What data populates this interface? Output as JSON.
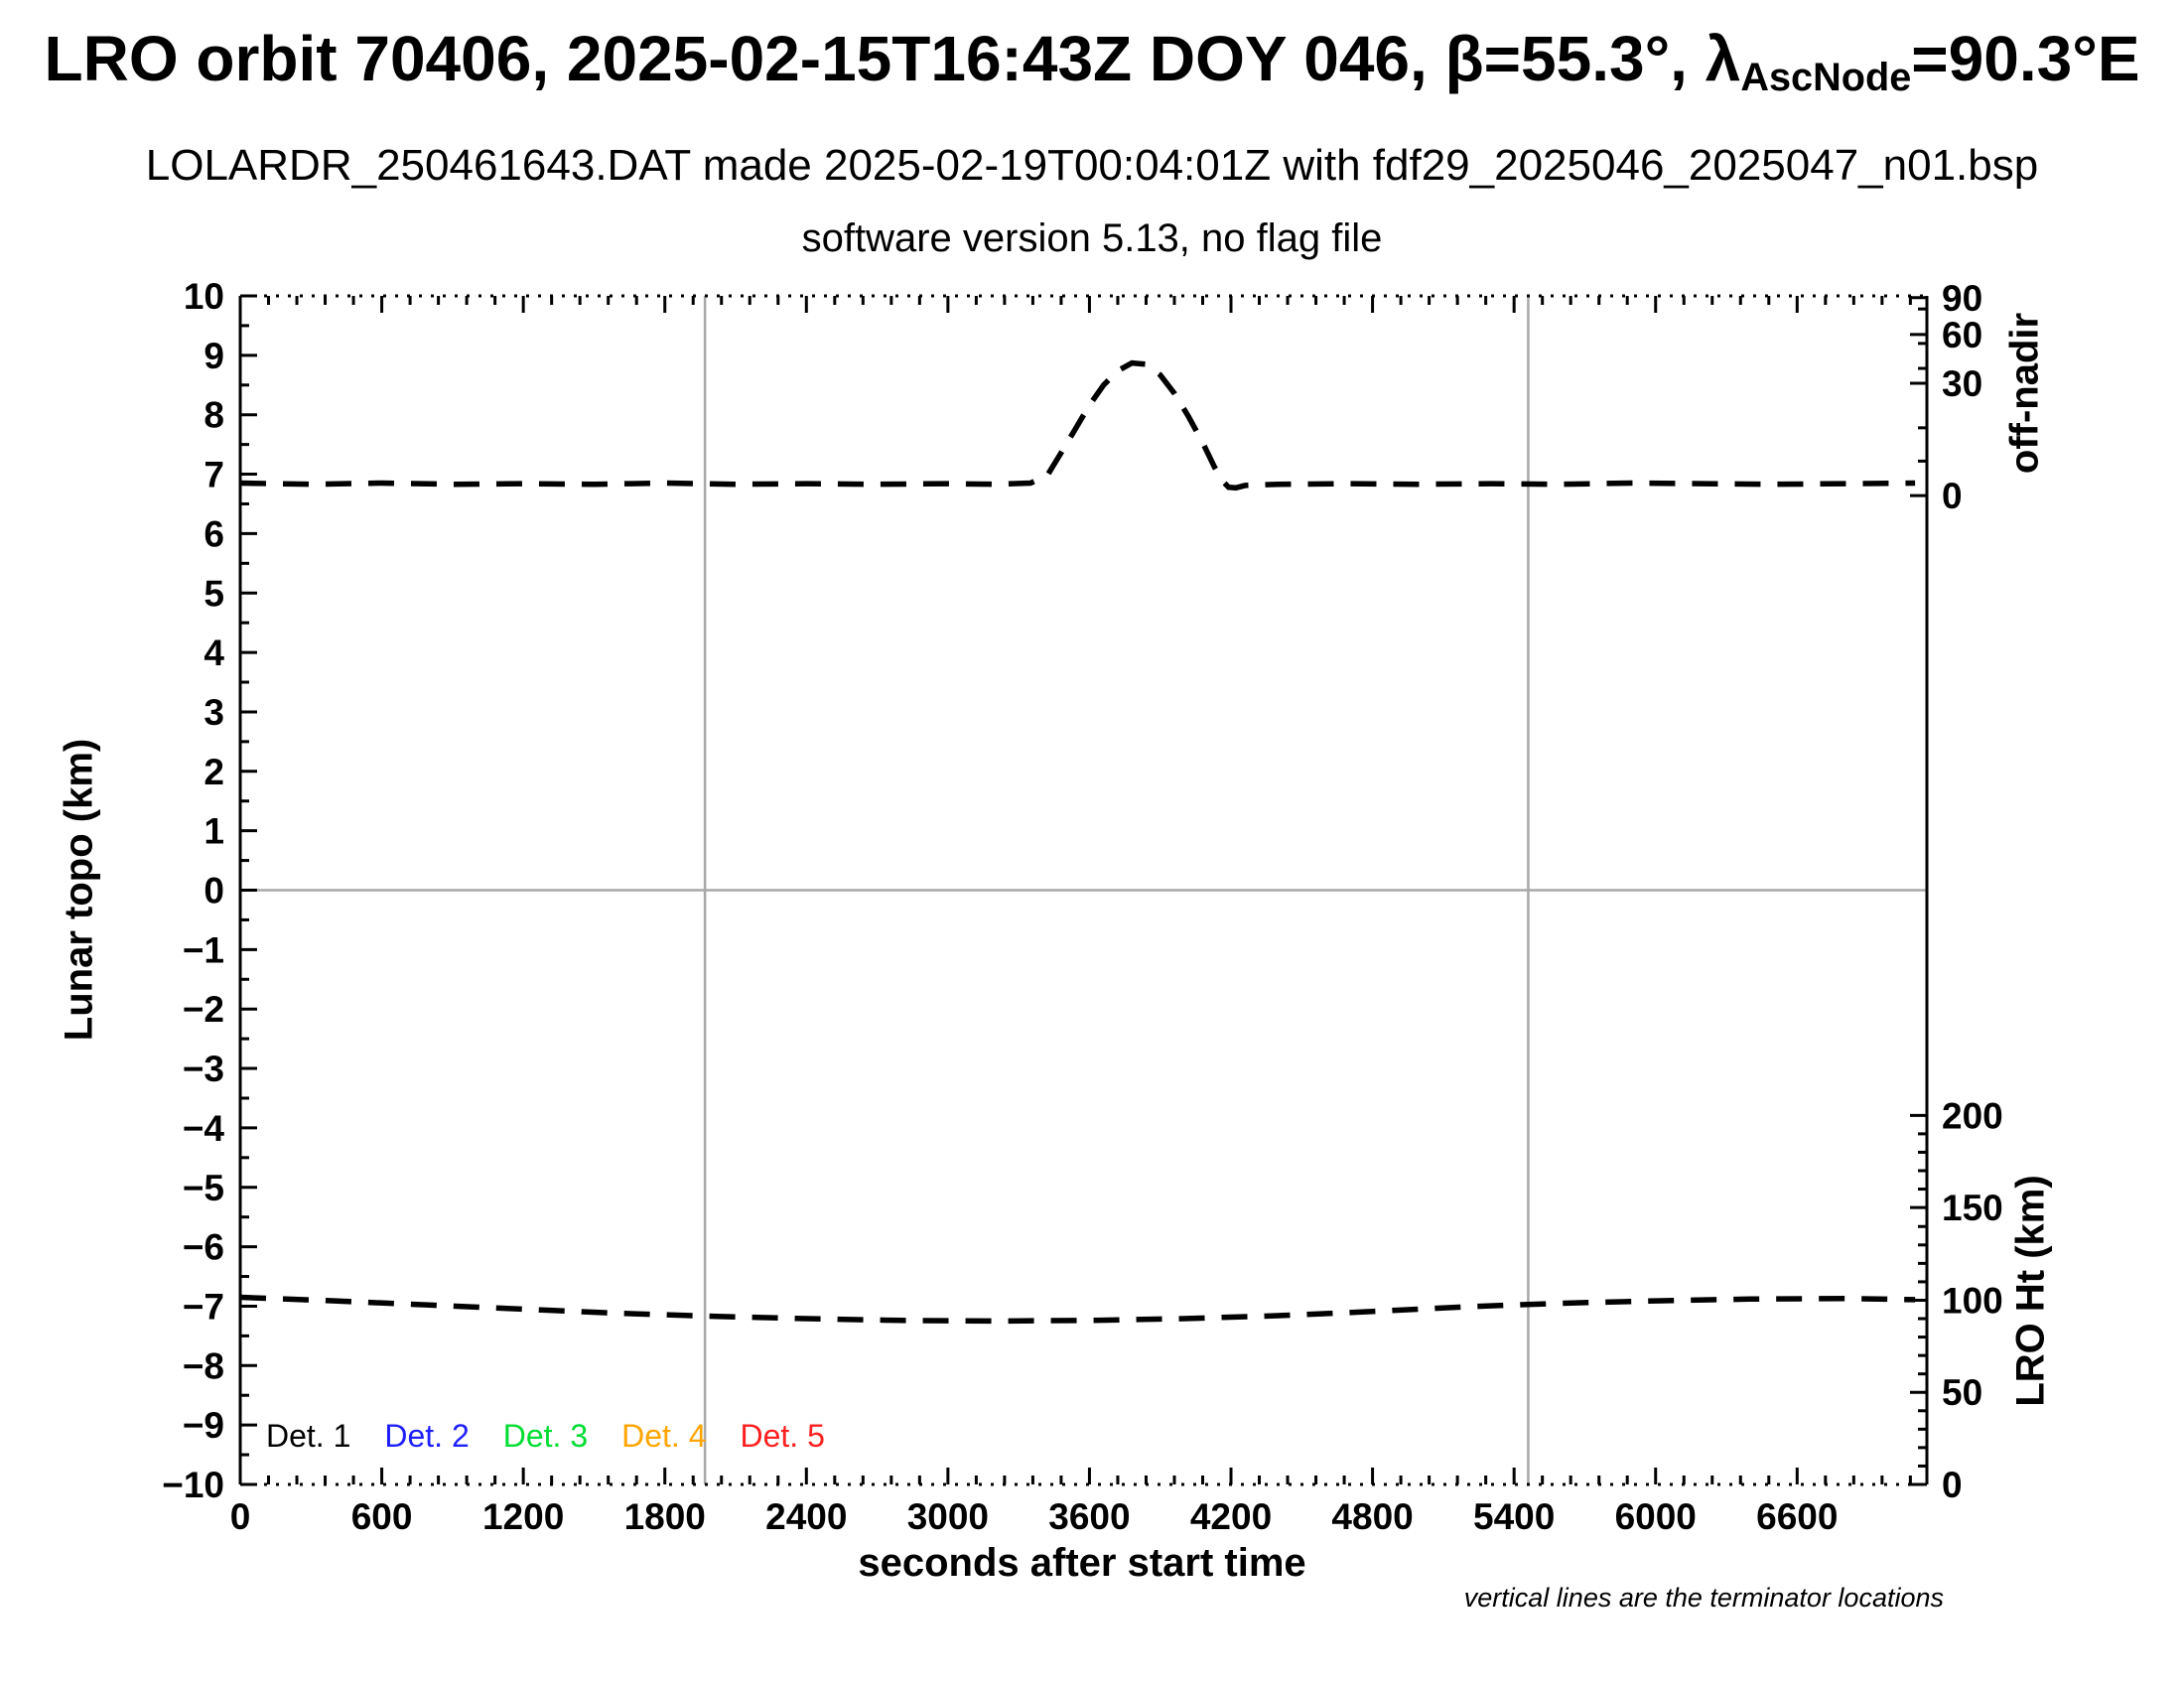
{
  "chart_data": {
    "type": "line",
    "title": {
      "part1": "LRO orbit 70406, 2025-02-15T16:43Z DOY 046, β=55.3°, λ",
      "subscript": "AscNode",
      "part2": "=90.3°E"
    },
    "subtitle": "LOLARDR_250461643.DAT made 2025-02-19T00:04:01Z with fdf29_2025046_2025047_n01.bsp",
    "subtitle2": "software version 5.13, no flag file",
    "xlabel": "seconds after start time",
    "ylabel": "Lunar topo (km)",
    "right_axis_top_label": "off-nadir",
    "right_axis_bottom_label": "LRO Ht (km)",
    "note": "vertical lines are the terminator locations",
    "xlim": [
      0,
      7150
    ],
    "ylim_left": [
      -10,
      10
    ],
    "x_major_step": 600,
    "x_minor_step": 120,
    "x_last_label": 6600,
    "y_major_step": 1,
    "y_minor_step": 0.5,
    "grid": "off",
    "zero_line_topo": 0,
    "terminators_s": [
      1970,
      5460
    ],
    "gridline_color": "#a8a8a8",
    "curve_color": "#000000",
    "offnadir_ticks": [
      {
        "label": "90",
        "topo": 9.97
      },
      {
        "label": "60",
        "topo": 9.35
      },
      {
        "label": "30",
        "topo": 8.53
      },
      {
        "label": "0",
        "topo": 6.64
      }
    ],
    "offnadir_minor_topo": [
      9.78,
      9.2,
      8.78,
      7.78,
      7.22
    ],
    "lro_ht_ticks": [
      {
        "label": "200",
        "topo": -3.79
      },
      {
        "label": "150",
        "topo": -5.34
      },
      {
        "label": "100",
        "topo": -6.9
      },
      {
        "label": "50",
        "topo": -8.45
      },
      {
        "label": "0",
        "topo": -10
      }
    ],
    "lro_ht_minor_topo": [
      -9.69,
      -9.38,
      -9.07,
      -8.76,
      -8.14,
      -7.83,
      -7.52,
      -7.21,
      -6.59,
      -6.28,
      -5.97,
      -5.66,
      -5.03,
      -4.72,
      -4.41,
      -4.1
    ],
    "series": [
      {
        "name": "off-nadir angle (Det. 1-5 overlapping, dashed, peak ≈ 42° slew near 3400-4170 s)",
        "style": "dashed",
        "color": "#000000",
        "points": [
          [
            0,
            6.85
          ],
          [
            300,
            6.83
          ],
          [
            600,
            6.85
          ],
          [
            900,
            6.83
          ],
          [
            1200,
            6.84
          ],
          [
            1500,
            6.83
          ],
          [
            1800,
            6.85
          ],
          [
            2100,
            6.83
          ],
          [
            2400,
            6.84
          ],
          [
            2700,
            6.83
          ],
          [
            3000,
            6.84
          ],
          [
            3200,
            6.83
          ],
          [
            3350,
            6.85
          ],
          [
            3420,
            6.97
          ],
          [
            3480,
            7.36
          ],
          [
            3540,
            7.76
          ],
          [
            3600,
            8.16
          ],
          [
            3660,
            8.5
          ],
          [
            3720,
            8.74
          ],
          [
            3780,
            8.87
          ],
          [
            3840,
            8.85
          ],
          [
            3900,
            8.67
          ],
          [
            3960,
            8.36
          ],
          [
            4020,
            7.97
          ],
          [
            4080,
            7.53
          ],
          [
            4130,
            7.12
          ],
          [
            4165,
            6.88
          ],
          [
            4190,
            6.78
          ],
          [
            4220,
            6.77
          ],
          [
            4260,
            6.81
          ],
          [
            4400,
            6.83
          ],
          [
            4700,
            6.84
          ],
          [
            5000,
            6.83
          ],
          [
            5300,
            6.84
          ],
          [
            5600,
            6.83
          ],
          [
            5900,
            6.85
          ],
          [
            6200,
            6.84
          ],
          [
            6500,
            6.83
          ],
          [
            6800,
            6.84
          ],
          [
            7100,
            6.85
          ]
        ]
      },
      {
        "name": "LRO height above surface (≈ 97 km start, min ≈ 85 km near 3200 s, dashed)",
        "style": "dashed",
        "color": "#000000",
        "points": [
          [
            0,
            -6.85
          ],
          [
            400,
            -6.91
          ],
          [
            800,
            -6.98
          ],
          [
            1200,
            -7.05
          ],
          [
            1600,
            -7.12
          ],
          [
            2000,
            -7.17
          ],
          [
            2400,
            -7.21
          ],
          [
            2800,
            -7.24
          ],
          [
            3200,
            -7.25
          ],
          [
            3600,
            -7.24
          ],
          [
            4000,
            -7.21
          ],
          [
            4400,
            -7.16
          ],
          [
            4800,
            -7.09
          ],
          [
            5200,
            -7.01
          ],
          [
            5600,
            -6.95
          ],
          [
            6000,
            -6.91
          ],
          [
            6400,
            -6.88
          ],
          [
            6800,
            -6.87
          ],
          [
            7100,
            -6.89
          ]
        ]
      }
    ],
    "legend": {
      "items": [
        {
          "label": "Det. 1",
          "color": "#000000"
        },
        {
          "label": "Det. 2",
          "color": "#2020ff"
        },
        {
          "label": "Det. 3",
          "color": "#00dd33"
        },
        {
          "label": "Det. 4",
          "color": "#ffa500"
        },
        {
          "label": "Det. 5",
          "color": "#ff2020"
        }
      ]
    }
  }
}
